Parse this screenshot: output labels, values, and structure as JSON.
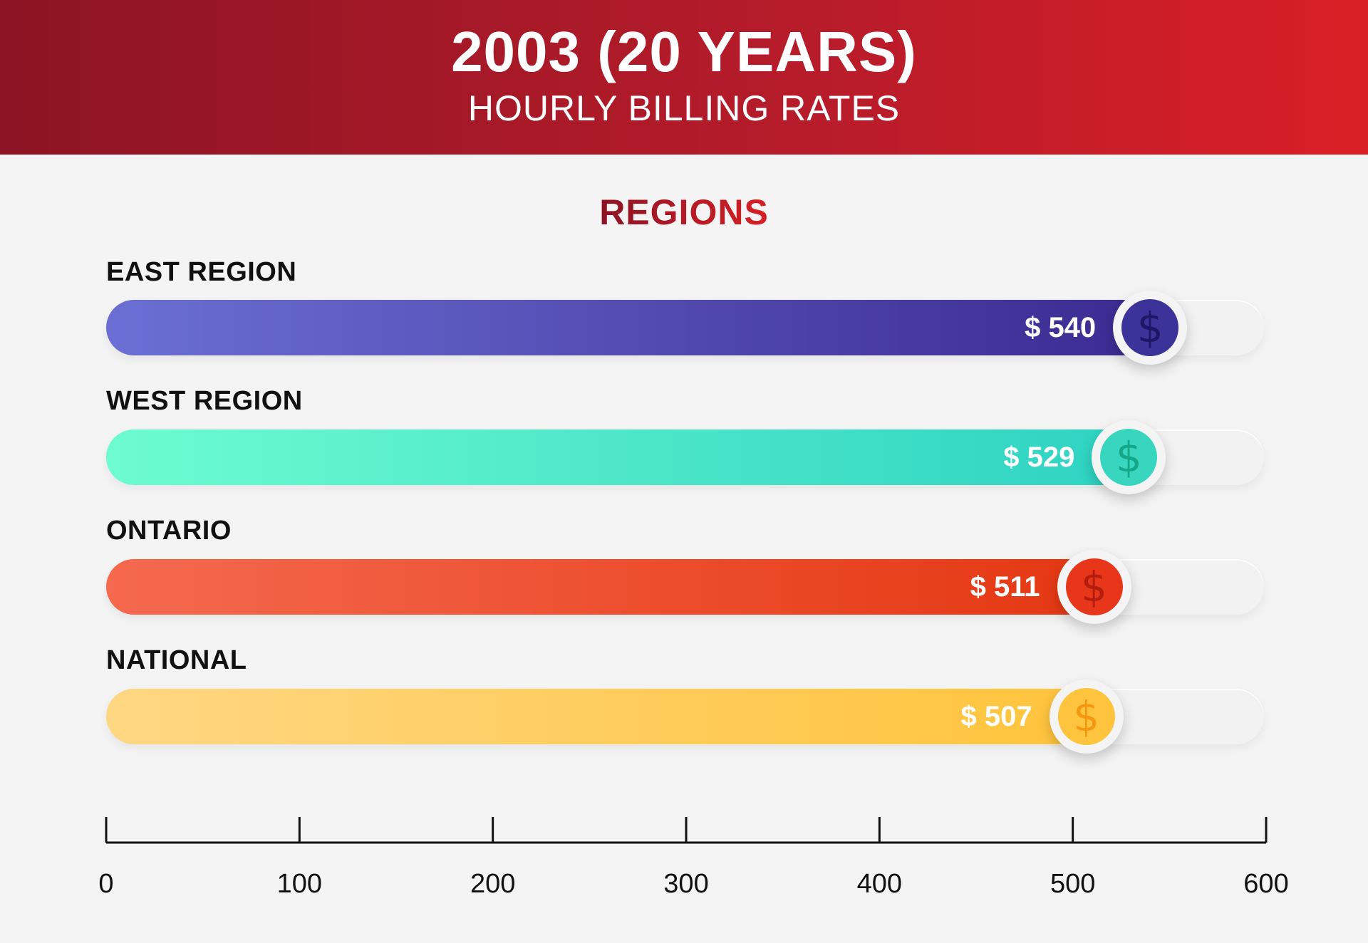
{
  "header": {
    "title": "2003 (20 YEARS)",
    "subtitle": "HOURLY BILLING RATES"
  },
  "section_title": "REGIONS",
  "chart_data": {
    "type": "bar",
    "orientation": "horizontal",
    "categories": [
      "EAST REGION",
      "WEST REGION",
      "ONTARIO",
      "NATIONAL"
    ],
    "values": [
      540,
      529,
      511,
      507
    ],
    "value_labels": [
      "$ 540",
      "$ 529",
      "$ 511",
      "$ 507"
    ],
    "xlim": [
      0,
      600
    ],
    "xticks": [
      0,
      100,
      200,
      300,
      400,
      500,
      600
    ],
    "xtick_labels": [
      "0",
      "100",
      "200",
      "300",
      "400",
      "500",
      "600"
    ],
    "grid": false,
    "colors": [
      {
        "start": "#6b6fd4",
        "end": "#3b2a92",
        "coin": "#3b3399",
        "glyph": "#1d1566"
      },
      {
        "start": "#6dfcd0",
        "end": "#2ed3c2",
        "coin": "#39d6bf",
        "glyph": "#14a888"
      },
      {
        "start": "#f5694f",
        "end": "#e43812",
        "coin": "#e8361a",
        "glyph": "#b51e0e"
      },
      {
        "start": "#ffd783",
        "end": "#ffc43c",
        "coin": "#ffc43e",
        "glyph": "#f59a10"
      }
    ],
    "coin_icon": "dollar-coin-icon"
  }
}
